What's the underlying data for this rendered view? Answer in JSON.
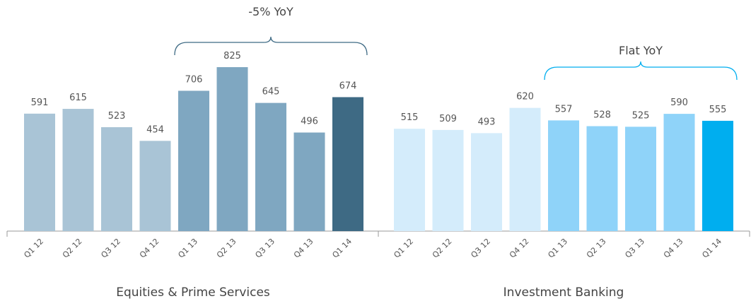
{
  "chart_data": [
    {
      "type": "bar",
      "title": "Equities & Prime Services",
      "categories": [
        "Q1 12",
        "Q2 12",
        "Q3 12",
        "Q4 12",
        "Q1 13",
        "Q2 13",
        "Q3 13",
        "Q4 13",
        "Q1 14"
      ],
      "values": [
        591,
        615,
        523,
        454,
        706,
        825,
        645,
        496,
        674
      ],
      "colors": [
        "#a9c4d6",
        "#a9c4d6",
        "#a9c4d6",
        "#a9c4d6",
        "#7fa7c1",
        "#7fa7c1",
        "#7fa7c1",
        "#7fa7c1",
        "#3e6a84"
      ],
      "annotation": "-5% YoY"
    },
    {
      "type": "bar",
      "title": "Investment Banking",
      "categories": [
        "Q1 12",
        "Q2 12",
        "Q3 12",
        "Q4 12",
        "Q1 13",
        "Q2 13",
        "Q3 13",
        "Q4 13",
        "Q1 14"
      ],
      "values": [
        515,
        509,
        493,
        620,
        557,
        528,
        525,
        590,
        555
      ],
      "colors": [
        "#d4ecfb",
        "#d4ecfb",
        "#d4ecfb",
        "#d4ecfb",
        "#8fd3f9",
        "#8fd3f9",
        "#8fd3f9",
        "#8fd3f9",
        "#00aeef"
      ],
      "annotation": "Flat YoY"
    }
  ]
}
